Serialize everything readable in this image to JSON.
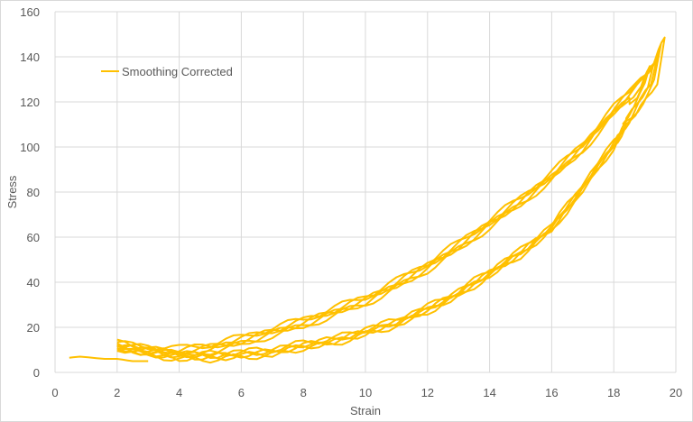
{
  "chart_data": {
    "type": "line",
    "title": "",
    "xlabel": "Strain",
    "ylabel": "Stress",
    "xlim": [
      0,
      20
    ],
    "ylim": [
      0,
      160
    ],
    "x_ticks": [
      0,
      2,
      4,
      6,
      8,
      10,
      12,
      14,
      16,
      18,
      20
    ],
    "y_ticks": [
      0,
      20,
      40,
      60,
      80,
      100,
      120,
      140,
      160
    ],
    "grid": true,
    "legend": {
      "position": "upper-left-inside",
      "entries": [
        "Smoothing Corrected"
      ]
    },
    "line_color": "#FFC000",
    "series": [
      {
        "name": "Smoothing Corrected",
        "description": "Repeated hysteresis loops; upper branch (loading) and lower branch (unloading) meeting near strain ~19",
        "upper_branch": {
          "x": [
            2,
            3,
            4,
            5,
            6,
            7,
            8,
            9,
            10,
            11,
            12,
            13,
            14,
            15,
            16,
            17,
            18,
            19,
            19.4
          ],
          "y": [
            11,
            10,
            9,
            11,
            14,
            18,
            22,
            27,
            32,
            39,
            47,
            56,
            66,
            76,
            87,
            100,
            116,
            130,
            141
          ]
        },
        "lower_branch": {
          "x": [
            19.2,
            18.5,
            18,
            17,
            16,
            15,
            14,
            13,
            12,
            11,
            10,
            9,
            8,
            7,
            6,
            5,
            4,
            3,
            2
          ],
          "y": [
            128,
            112,
            101,
            82,
            64,
            53,
            44,
            35,
            28,
            22,
            18,
            14,
            12,
            9,
            8,
            7,
            7,
            9,
            12
          ]
        },
        "initial_segment": {
          "x": [
            0.46,
            0.8,
            1.2,
            1.6,
            2.0,
            2.5,
            3.0
          ],
          "y": [
            6.5,
            7,
            6.5,
            6,
            6,
            5,
            5
          ]
        },
        "cycles": 5
      }
    ]
  },
  "axes": {
    "x_title": "Strain",
    "y_title": "Stress",
    "x_tick_labels": [
      "0",
      "2",
      "4",
      "6",
      "8",
      "10",
      "12",
      "14",
      "16",
      "18",
      "20"
    ],
    "y_tick_labels": [
      "0",
      "20",
      "40",
      "60",
      "80",
      "100",
      "120",
      "140",
      "160"
    ]
  },
  "legend": {
    "label": "Smoothing Corrected",
    "color": "#FFC000"
  }
}
